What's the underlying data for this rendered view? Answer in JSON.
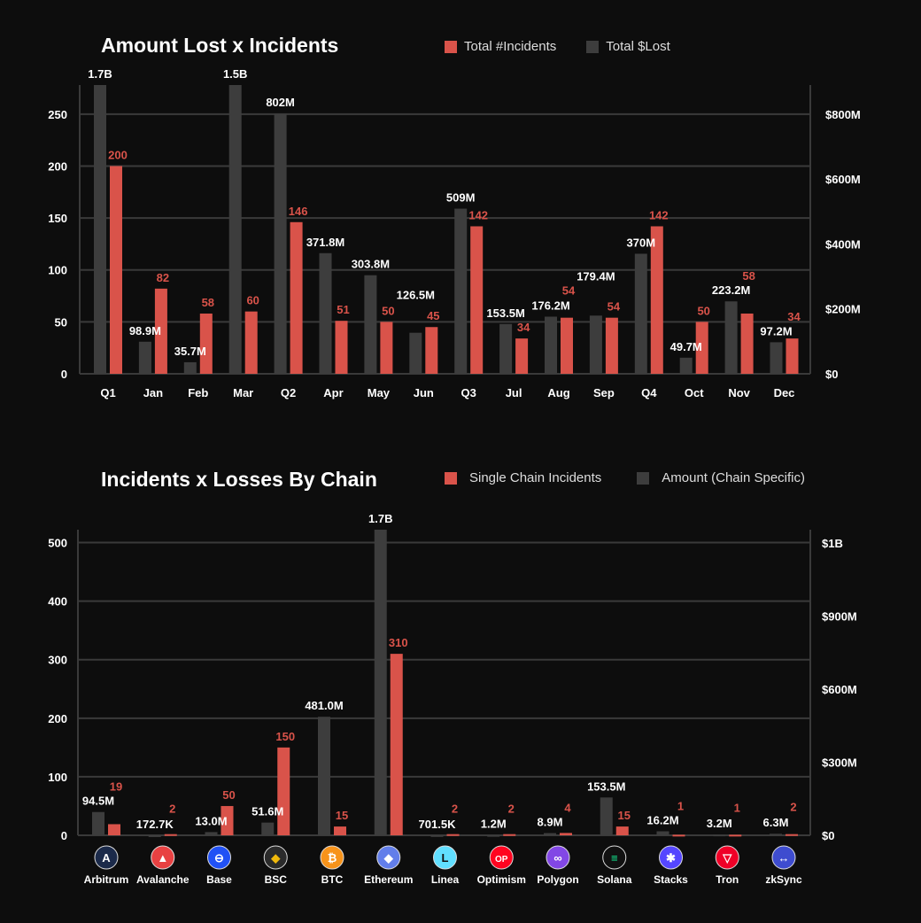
{
  "chart_data": [
    {
      "type": "bar",
      "title": "Amount Lost x Incidents",
      "legend": [
        "Total #Incidents",
        "Total $Lost"
      ],
      "legend_placement": "top-right",
      "categories": [
        "Q1",
        "Jan",
        "Feb",
        "Mar",
        "Q2",
        "Apr",
        "May",
        "Jun",
        "Q3",
        "Jul",
        "Aug",
        "Sep",
        "Q4",
        "Oct",
        "Nov",
        "Dec"
      ],
      "series": [
        {
          "name": "Total $Lost",
          "axis": "right",
          "color": "#3d3d3d",
          "values": [
            1700,
            98.9,
            35.7,
            1500,
            802,
            371.8,
            303.8,
            126.5,
            509,
            153.5,
            176.2,
            179.4,
            370,
            49.7,
            223.2,
            97.2
          ],
          "labels": [
            "1.7B",
            "98.9M",
            "35.7M",
            "1.5B",
            "802M",
            "371.8M",
            "303.8M",
            "126.5M",
            "509M",
            "153.5M",
            "176.2M",
            "179.4M",
            "370M",
            "49.7M",
            "223.2M",
            "97.2M"
          ]
        },
        {
          "name": "Total #Incidents",
          "axis": "left",
          "color": "#d9534a",
          "values": [
            200,
            82,
            58,
            60,
            146,
            51,
            50,
            45,
            142,
            34,
            54,
            54,
            142,
            50,
            58,
            34
          ],
          "labels": [
            "200",
            "82",
            "58",
            "60",
            "146",
            "51",
            "50",
            "45",
            "142",
            "34",
            "54",
            "54",
            "142",
            "50",
            "58",
            "34"
          ]
        }
      ],
      "left_ticks": [
        "0",
        "50",
        "100",
        "150",
        "200",
        "250"
      ],
      "left_tick_values": [
        0,
        50,
        100,
        150,
        200,
        250
      ],
      "right_ticks": [
        "$0",
        "$200M",
        "$400M",
        "$600M",
        "$800M"
      ],
      "right_tick_values": [
        0,
        200,
        400,
        600,
        800
      ],
      "ylim_left": [
        0,
        278
      ],
      "ylim_right_millions": [
        0,
        890
      ]
    },
    {
      "type": "bar",
      "title": "Incidents x Losses By Chain",
      "legend": [
        "Single Chain Incidents",
        "Amount (Chain Specific)"
      ],
      "legend_placement": "top-right",
      "categories": [
        "Arbitrum",
        "Avalanche",
        "Base",
        "BSC",
        "BTC",
        "Ethereum",
        "Linea",
        "Optimism",
        "Polygon",
        "Solana",
        "Stacks",
        "Tron",
        "zkSync"
      ],
      "series": [
        {
          "name": "Amount (Chain Specific)",
          "axis": "right",
          "color": "#3d3d3d",
          "values": [
            94.5,
            0.1727,
            13.0,
            51.6,
            481.0,
            1700,
            0.7015,
            1.2,
            8.9,
            153.5,
            16.2,
            3.2,
            6.3
          ],
          "labels": [
            "94.5M",
            "172.7K",
            "13.0M",
            "51.6M",
            "481.0M",
            "1.7B",
            "701.5K",
            "1.2M",
            "8.9M",
            "153.5M",
            "16.2M",
            "3.2M",
            "6.3M"
          ]
        },
        {
          "name": "Single Chain Incidents",
          "axis": "left",
          "color": "#d9534a",
          "values": [
            19,
            2,
            50,
            150,
            15,
            310,
            2,
            2,
            4,
            15,
            1,
            1,
            2
          ],
          "labels": [
            "19",
            "2",
            "50",
            "150",
            "15",
            "310",
            "2",
            "2",
            "4",
            "15",
            "1",
            "1",
            "2"
          ]
        }
      ],
      "left_ticks": [
        "0",
        "100",
        "200",
        "300",
        "400",
        "500"
      ],
      "left_tick_values": [
        0,
        100,
        200,
        300,
        400,
        500
      ],
      "right_ticks": [
        "$0",
        "$300M",
        "$600M",
        "$900M",
        "$1B"
      ],
      "right_tick_values": [
        0,
        300,
        600,
        900,
        1000
      ],
      "ylim_left": [
        0,
        522
      ],
      "ylim_right_millions": [
        0,
        1240
      ],
      "icons": [
        {
          "name": "arbitrum-icon",
          "bg": "#1b2a4a",
          "fg": "#ffffff",
          "glyph": "A"
        },
        {
          "name": "avalanche-icon",
          "bg": "#e84142",
          "fg": "#ffffff",
          "glyph": "▲"
        },
        {
          "name": "base-icon",
          "bg": "#2151f5",
          "fg": "#ffffff",
          "glyph": "⊖"
        },
        {
          "name": "bsc-icon",
          "bg": "#2b2b2b",
          "fg": "#f0b90b",
          "glyph": "◆"
        },
        {
          "name": "btc-icon",
          "bg": "#f7931a",
          "fg": "#ffffff",
          "glyph": "₿"
        },
        {
          "name": "ethereum-icon",
          "bg": "#627eea",
          "fg": "#ffffff",
          "glyph": "◆"
        },
        {
          "name": "linea-icon",
          "bg": "#61dfff",
          "fg": "#111111",
          "glyph": "L"
        },
        {
          "name": "optimism-icon",
          "bg": "#ff0420",
          "fg": "#ffffff",
          "glyph": "OP"
        },
        {
          "name": "polygon-icon",
          "bg": "#8247e5",
          "fg": "#ffffff",
          "glyph": "∞"
        },
        {
          "name": "solana-icon",
          "bg": "#111111",
          "fg": "#14f195",
          "glyph": "≡"
        },
        {
          "name": "stacks-icon",
          "bg": "#5546ff",
          "fg": "#ffffff",
          "glyph": "✱"
        },
        {
          "name": "tron-icon",
          "bg": "#ef0027",
          "fg": "#ffffff",
          "glyph": "▽"
        },
        {
          "name": "zksync-icon",
          "bg": "#3e4ccf",
          "fg": "#ffffff",
          "glyph": "↔"
        }
      ]
    }
  ]
}
